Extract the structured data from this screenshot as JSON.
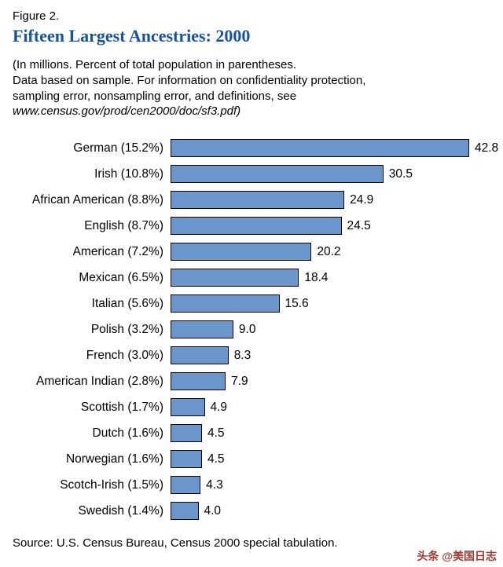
{
  "header": {
    "figure_label": "Figure 2.",
    "title": "Fifteen Largest Ancestries: 2000",
    "note_lines": [
      "(In millions. Percent of total population in parentheses.",
      "Data based on sample.  For information on confidentiality protection,",
      "sampling error, nonsampling error, and definitions, see",
      "www.census.gov/prod/cen2000/doc/sf3.pdf)"
    ]
  },
  "chart_data": {
    "type": "bar",
    "orientation": "horizontal",
    "title": "Fifteen Largest Ancestries: 2000",
    "categories": [
      "German (15.2%)",
      "Irish (10.8%)",
      "African American (8.8%)",
      "English (8.7%)",
      "American (7.2%)",
      "Mexican (6.5%)",
      "Italian (5.6%)",
      "Polish (3.2%)",
      "French (3.0%)",
      "American Indian (2.8%)",
      "Scottish (1.7%)",
      "Dutch (1.6%)",
      "Norwegian (1.6%)",
      "Scotch-Irish (1.5%)",
      "Swedish (1.4%)"
    ],
    "values": [
      42.8,
      30.5,
      24.9,
      24.5,
      20.2,
      18.4,
      15.6,
      9.0,
      8.3,
      7.9,
      4.9,
      4.5,
      4.5,
      4.3,
      4.0
    ],
    "value_labels": [
      "42.8",
      "30.5",
      "24.9",
      "24.5",
      "20.2",
      "18.4",
      "15.6",
      "9.0",
      "8.3",
      "7.9",
      "4.9",
      "4.5",
      "4.5",
      "4.3",
      "4.0"
    ],
    "percent_of_population": [
      15.2,
      10.8,
      8.8,
      8.7,
      7.2,
      6.5,
      5.6,
      3.2,
      3.0,
      2.8,
      1.7,
      1.6,
      1.6,
      1.5,
      1.4
    ],
    "units": "millions",
    "xlabel": "",
    "ylabel": "",
    "xlim": [
      0,
      44
    ],
    "grid": false,
    "legend": "none",
    "bar_color": "#6a96cc",
    "bar_border_color": "#000000"
  },
  "footer": {
    "source": "Source:  U.S. Census Bureau, Census 2000 special tabulation.",
    "watermark": "头条 @美国日志"
  },
  "colors": {
    "title": "#17529e",
    "bar": "#6a96cc",
    "watermark": "#9c3b34"
  }
}
